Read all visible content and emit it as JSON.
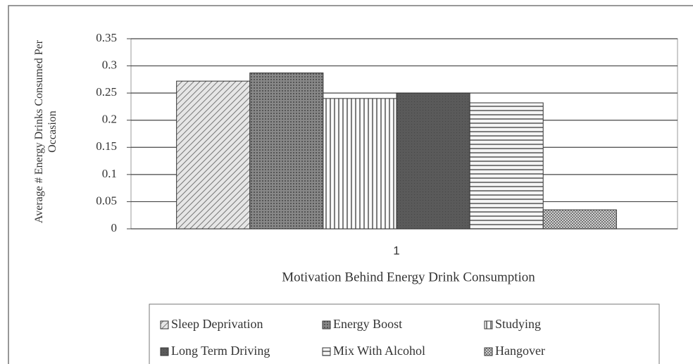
{
  "chart_data": {
    "type": "bar",
    "categories": [
      "1"
    ],
    "x_label": "Motivation Behind Energy Drink Consumption",
    "y_label": "Average # Energy Drinks Consumed Per Occasion",
    "series": [
      {
        "name": "Sleep Deprivation",
        "color": "#b8b8b8",
        "values": [
          0.272
        ]
      },
      {
        "name": "Energy Boost",
        "color": "#6e6e6e",
        "values": [
          0.287
        ]
      },
      {
        "name": "Studying",
        "color": "#f2f2f2",
        "values": [
          0.24
        ]
      },
      {
        "name": "Long Term Driving",
        "color": "#555555",
        "values": [
          0.25
        ]
      },
      {
        "name": "Mix With Alcohol",
        "color": "#e0e0e0",
        "values": [
          0.232
        ]
      },
      {
        "name": "Hangover",
        "color": "#a8a8a8",
        "values": [
          0.035
        ]
      }
    ],
    "ylim": [
      0,
      0.35
    ],
    "yticks": [
      0,
      0.05,
      0.1,
      0.15,
      0.2,
      0.25,
      0.3,
      0.35
    ],
    "grid": true
  }
}
